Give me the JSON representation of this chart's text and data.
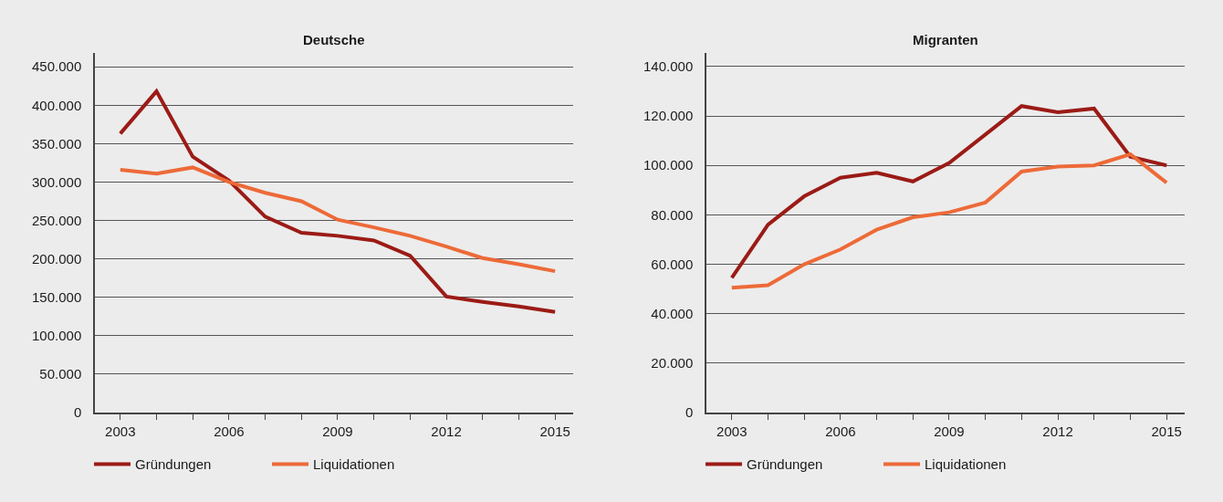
{
  "chart_data": [
    {
      "type": "line",
      "title": "Deutsche",
      "x": [
        2003,
        2004,
        2005,
        2006,
        2007,
        2008,
        2009,
        2010,
        2011,
        2012,
        2013,
        2014,
        2015
      ],
      "xlim": [
        2002.3,
        2015.5
      ],
      "xticks": [
        2003,
        {
          "value": 2004,
          "label": null
        },
        {
          "value": 2005,
          "label": null
        },
        2006,
        {
          "value": 2007,
          "label": null
        },
        {
          "value": 2008,
          "label": null
        },
        2009,
        {
          "value": 2010,
          "label": null
        },
        {
          "value": 2011,
          "label": null
        },
        2012,
        {
          "value": 2013,
          "label": null
        },
        {
          "value": 2014,
          "label": null
        },
        2015
      ],
      "ylim": [
        0,
        468000
      ],
      "yticks": [
        0,
        {
          "value": 50000,
          "label": "50.000"
        },
        {
          "value": 100000,
          "label": "100.000"
        },
        {
          "value": 150000,
          "label": "150.000"
        },
        {
          "value": 200000,
          "label": "200.000"
        },
        {
          "value": 250000,
          "label": "250.000"
        },
        {
          "value": 300000,
          "label": "300.000"
        },
        {
          "value": 350000,
          "label": "350.000"
        },
        {
          "value": 400000,
          "label": "400.000"
        },
        {
          "value": 450000,
          "label": "450.000"
        }
      ],
      "grid": "y",
      "legend": "bottom",
      "line_style": "solid",
      "series": [
        {
          "name": "Gründungen",
          "color": "#9b1b16",
          "values": [
            363000,
            418000,
            333000,
            302000,
            255000,
            234000,
            230000,
            224000,
            204000,
            151000,
            144000,
            138000,
            131000
          ]
        },
        {
          "name": "Liquidationen",
          "color": "#ed6a38",
          "values": [
            316000,
            311000,
            319000,
            300000,
            286000,
            275000,
            251000,
            241000,
            230000,
            216000,
            201000,
            193000,
            184000
          ]
        }
      ]
    },
    {
      "type": "line",
      "title": "Migranten",
      "x": [
        2003,
        2004,
        2005,
        2006,
        2007,
        2008,
        2009,
        2010,
        2011,
        2012,
        2013,
        2014,
        2015
      ],
      "xlim": [
        2002.3,
        2015.5
      ],
      "xticks": [
        2003,
        {
          "value": 2004,
          "label": null
        },
        {
          "value": 2005,
          "label": null
        },
        2006,
        {
          "value": 2007,
          "label": null
        },
        {
          "value": 2008,
          "label": null
        },
        2009,
        {
          "value": 2010,
          "label": null
        },
        {
          "value": 2011,
          "label": null
        },
        2012,
        {
          "value": 2013,
          "label": null
        },
        {
          "value": 2014,
          "label": null
        },
        2015
      ],
      "ylim": [
        0,
        145500
      ],
      "yticks": [
        0,
        {
          "value": 20000,
          "label": "20.000"
        },
        {
          "value": 40000,
          "label": "40.000"
        },
        {
          "value": 60000,
          "label": "60.000"
        },
        {
          "value": 80000,
          "label": "80.000"
        },
        {
          "value": 100000,
          "label": "100.000"
        },
        {
          "value": 120000,
          "label": "120.000"
        },
        {
          "value": 140000,
          "label": "140.000"
        }
      ],
      "grid": "y",
      "legend": "bottom",
      "line_style": "solid",
      "series": [
        {
          "name": "Gründungen",
          "color": "#9b1b16",
          "values": [
            54500,
            76000,
            87500,
            95000,
            97000,
            93500,
            101000,
            112500,
            124000,
            121500,
            123000,
            103500,
            100000
          ]
        },
        {
          "name": "Liquidationen",
          "color": "#ed6a38",
          "values": [
            50500,
            51500,
            60000,
            66000,
            74000,
            79000,
            81000,
            85000,
            97500,
            99500,
            100000,
            104500,
            93000
          ]
        }
      ]
    }
  ]
}
